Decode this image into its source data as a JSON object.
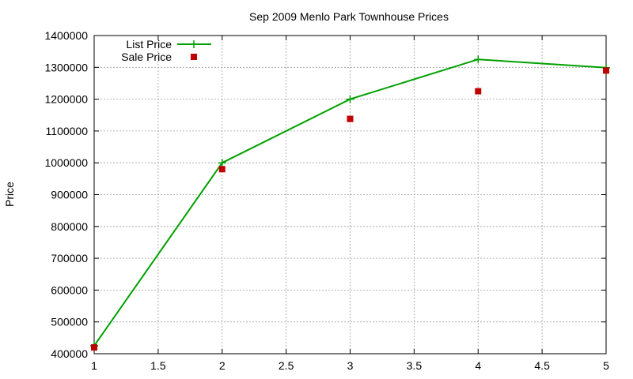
{
  "chart_data": {
    "type": "line",
    "title": "Sep 2009 Menlo Park Townhouse Prices",
    "xlabel": "",
    "ylabel": "Price",
    "xlim": [
      1,
      5
    ],
    "ylim": [
      400000,
      1400000
    ],
    "x_ticks": [
      "1",
      "1.5",
      "2",
      "2.5",
      "3",
      "3.5",
      "4",
      "4.5",
      "5"
    ],
    "y_ticks": [
      "400000",
      "500000",
      "600000",
      "700000",
      "800000",
      "900000",
      "1000000",
      "1100000",
      "1200000",
      "1300000",
      "1400000"
    ],
    "grid": true,
    "legend_position": "top-left",
    "series": [
      {
        "name": "List Price",
        "style": "line+plus",
        "color": "#00a000",
        "x": [
          1,
          2,
          3,
          4,
          5
        ],
        "values": [
          425000,
          1000000,
          1200000,
          1325000,
          1299000
        ]
      },
      {
        "name": "Sale Price",
        "style": "square",
        "color": "#c00000",
        "x": [
          1,
          2,
          3,
          4,
          5
        ],
        "values": [
          420000,
          980000,
          1138000,
          1225000,
          1290000
        ]
      }
    ]
  }
}
